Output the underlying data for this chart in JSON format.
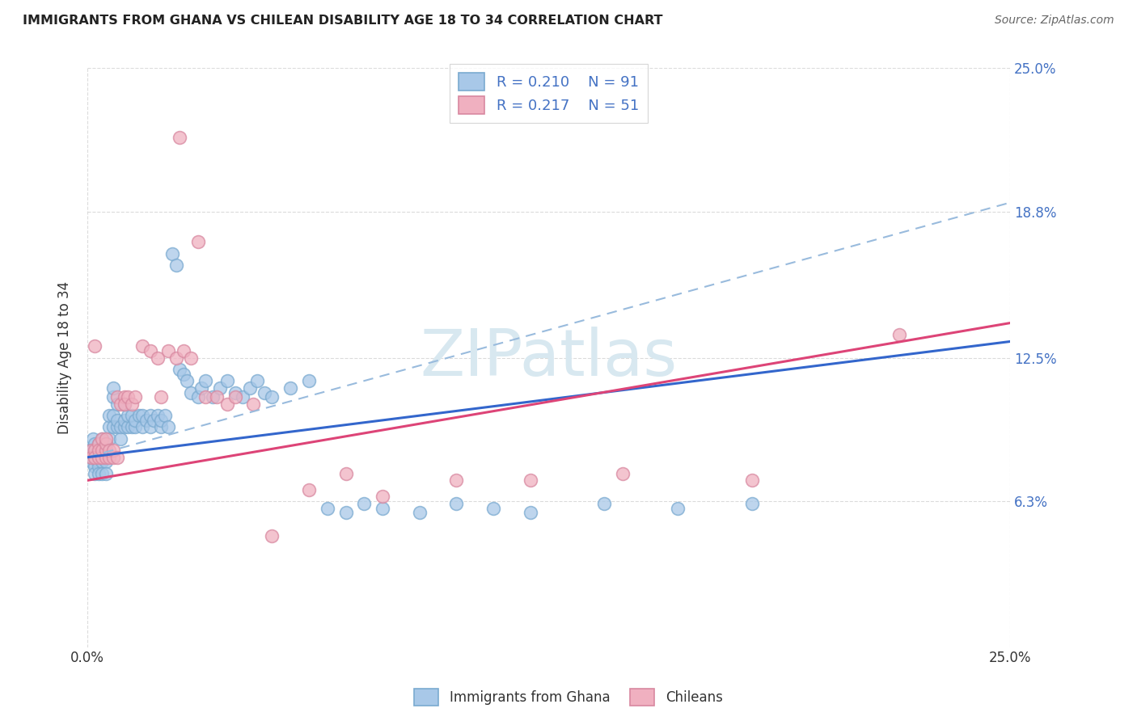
{
  "title": "IMMIGRANTS FROM GHANA VS CHILEAN DISABILITY AGE 18 TO 34 CORRELATION CHART",
  "source": "Source: ZipAtlas.com",
  "ylabel": "Disability Age 18 to 34",
  "xlim": [
    0.0,
    0.25
  ],
  "ylim": [
    0.0,
    0.25
  ],
  "legend_label1": "Immigrants from Ghana",
  "legend_label2": "Chileans",
  "R1": "0.210",
  "N1": "91",
  "R2": "0.217",
  "N2": "51",
  "color_blue": "#A8C8E8",
  "color_blue_edge": "#7AAAD0",
  "color_pink": "#F0B0C0",
  "color_pink_edge": "#D888A0",
  "color_line_blue": "#3366CC",
  "color_line_pink": "#DD4477",
  "color_line_dash": "#99BBDD",
  "watermark_color": "#D8E8F0",
  "background": "#FFFFFF",
  "grid_color": "#CCCCCC",
  "ytick_vals": [
    0.063,
    0.125,
    0.188,
    0.25
  ],
  "ytick_labels": [
    "6.3%",
    "12.5%",
    "18.8%",
    "25.0%"
  ],
  "line_blue_x0": 0.0,
  "line_blue_y0": 0.082,
  "line_blue_x1": 0.25,
  "line_blue_y1": 0.132,
  "line_pink_x0": 0.0,
  "line_pink_y0": 0.072,
  "line_pink_x1": 0.25,
  "line_pink_y1": 0.14,
  "line_dash_x0": 0.0,
  "line_dash_y0": 0.082,
  "line_dash_x1": 0.25,
  "line_dash_y1": 0.192,
  "ghana_x": [
    0.0005,
    0.001,
    0.001,
    0.001,
    0.0015,
    0.002,
    0.002,
    0.002,
    0.002,
    0.002,
    0.003,
    0.003,
    0.003,
    0.003,
    0.003,
    0.003,
    0.003,
    0.004,
    0.004,
    0.004,
    0.004,
    0.004,
    0.005,
    0.005,
    0.005,
    0.005,
    0.005,
    0.006,
    0.006,
    0.006,
    0.007,
    0.007,
    0.007,
    0.007,
    0.008,
    0.008,
    0.008,
    0.009,
    0.009,
    0.01,
    0.01,
    0.01,
    0.011,
    0.011,
    0.012,
    0.012,
    0.013,
    0.013,
    0.014,
    0.015,
    0.015,
    0.016,
    0.017,
    0.017,
    0.018,
    0.019,
    0.02,
    0.02,
    0.021,
    0.022,
    0.023,
    0.024,
    0.025,
    0.026,
    0.027,
    0.028,
    0.03,
    0.031,
    0.032,
    0.034,
    0.036,
    0.038,
    0.04,
    0.042,
    0.044,
    0.046,
    0.048,
    0.05,
    0.055,
    0.06,
    0.065,
    0.07,
    0.075,
    0.08,
    0.09,
    0.1,
    0.11,
    0.12,
    0.14,
    0.16,
    0.18
  ],
  "ghana_y": [
    0.085,
    0.085,
    0.08,
    0.082,
    0.09,
    0.078,
    0.082,
    0.085,
    0.088,
    0.075,
    0.082,
    0.08,
    0.078,
    0.083,
    0.085,
    0.088,
    0.075,
    0.08,
    0.083,
    0.085,
    0.09,
    0.075,
    0.082,
    0.08,
    0.085,
    0.088,
    0.075,
    0.095,
    0.1,
    0.09,
    0.108,
    0.112,
    0.1,
    0.095,
    0.095,
    0.098,
    0.105,
    0.09,
    0.095,
    0.095,
    0.098,
    0.105,
    0.095,
    0.1,
    0.095,
    0.1,
    0.095,
    0.098,
    0.1,
    0.095,
    0.1,
    0.098,
    0.1,
    0.095,
    0.098,
    0.1,
    0.095,
    0.098,
    0.1,
    0.095,
    0.17,
    0.165,
    0.12,
    0.118,
    0.115,
    0.11,
    0.108,
    0.112,
    0.115,
    0.108,
    0.112,
    0.115,
    0.11,
    0.108,
    0.112,
    0.115,
    0.11,
    0.108,
    0.112,
    0.115,
    0.06,
    0.058,
    0.062,
    0.06,
    0.058,
    0.062,
    0.06,
    0.058,
    0.062,
    0.06,
    0.062
  ],
  "chile_x": [
    0.001,
    0.001,
    0.002,
    0.002,
    0.002,
    0.003,
    0.003,
    0.003,
    0.004,
    0.004,
    0.004,
    0.005,
    0.005,
    0.005,
    0.005,
    0.006,
    0.006,
    0.007,
    0.007,
    0.008,
    0.008,
    0.009,
    0.01,
    0.01,
    0.011,
    0.012,
    0.013,
    0.015,
    0.017,
    0.019,
    0.02,
    0.022,
    0.024,
    0.025,
    0.026,
    0.028,
    0.03,
    0.032,
    0.035,
    0.038,
    0.04,
    0.045,
    0.05,
    0.06,
    0.07,
    0.08,
    0.1,
    0.12,
    0.145,
    0.18,
    0.22
  ],
  "chile_y": [
    0.085,
    0.082,
    0.085,
    0.13,
    0.082,
    0.088,
    0.082,
    0.085,
    0.082,
    0.085,
    0.09,
    0.082,
    0.085,
    0.088,
    0.09,
    0.082,
    0.085,
    0.082,
    0.085,
    0.082,
    0.108,
    0.105,
    0.108,
    0.105,
    0.108,
    0.105,
    0.108,
    0.13,
    0.128,
    0.125,
    0.108,
    0.128,
    0.125,
    0.22,
    0.128,
    0.125,
    0.175,
    0.108,
    0.108,
    0.105,
    0.108,
    0.105,
    0.048,
    0.068,
    0.075,
    0.065,
    0.072,
    0.072,
    0.075,
    0.072,
    0.135
  ]
}
